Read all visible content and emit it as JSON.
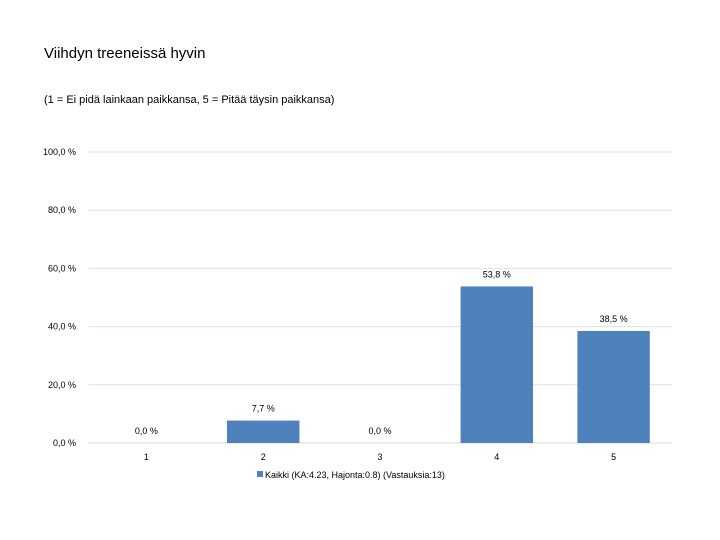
{
  "chart_data": {
    "type": "bar",
    "title": "Viihdyn treeneissä hyvin",
    "subtitle": "(1 = Ei pidä lainkaan paikkansa, 5 = Pitää täysin paikkansa)",
    "categories": [
      "1",
      "2",
      "3",
      "4",
      "5"
    ],
    "series": [
      {
        "name": "Kaikki (KA:4.23, Hajonta:0.8) (Vastauksia:13)",
        "values": [
          0.0,
          7.7,
          0.0,
          53.8,
          38.5
        ],
        "labels": [
          "0,0 %",
          "7,7 %",
          "0,0 %",
          "53,8 %",
          "38,5 %"
        ],
        "color": "#4f81bd"
      }
    ],
    "ylim": [
      0,
      100
    ],
    "yticks": [
      0,
      20,
      40,
      60,
      80,
      100
    ],
    "ytick_labels": [
      "0,0 %",
      "20,0 %",
      "40,0 %",
      "60,0 %",
      "80,0 %",
      "100,0 %"
    ],
    "grid": true,
    "gridline_color": "#d9e3ee",
    "legend_position": "bottom",
    "xlabel": "",
    "ylabel": ""
  }
}
